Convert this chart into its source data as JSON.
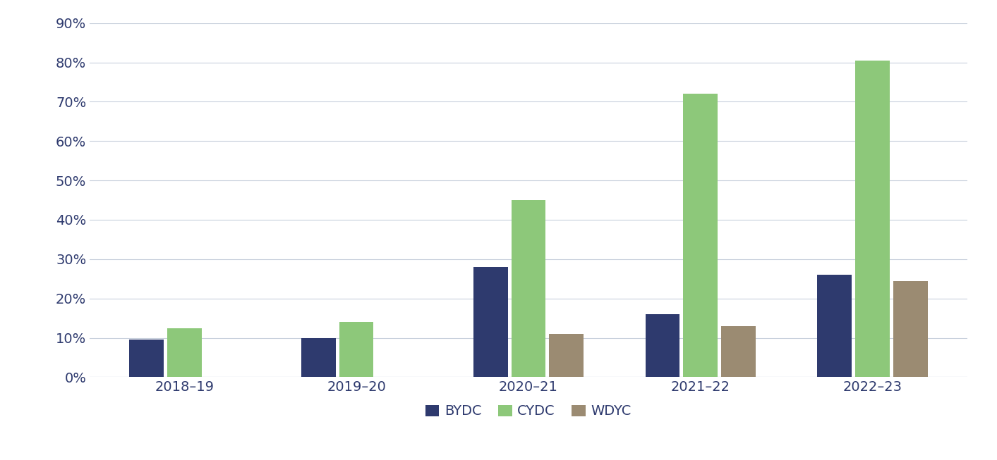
{
  "categories": [
    "2018–19",
    "2019–20",
    "2020–21",
    "2021–22",
    "2022–23"
  ],
  "series": {
    "BYDC": [
      0.095,
      0.1,
      0.28,
      0.16,
      0.26
    ],
    "CYDC": [
      0.125,
      0.14,
      0.45,
      0.72,
      0.805
    ],
    "WDYC": [
      null,
      null,
      0.11,
      0.13,
      0.245
    ]
  },
  "colors": {
    "BYDC": "#2E3A6E",
    "CYDC": "#8DC87A",
    "WDYC": "#9B8B72"
  },
  "ylim": [
    0,
    0.9
  ],
  "yticks": [
    0,
    0.1,
    0.2,
    0.3,
    0.4,
    0.5,
    0.6,
    0.7,
    0.8,
    0.9
  ],
  "bar_width": 0.2,
  "bar_gap": 0.02,
  "background_color": "#ffffff",
  "grid_color": "#c8d0dc",
  "text_color": "#2E3A6E",
  "tick_fontsize": 14,
  "legend_fontsize": 14,
  "figsize": [
    14.13,
    6.53
  ]
}
